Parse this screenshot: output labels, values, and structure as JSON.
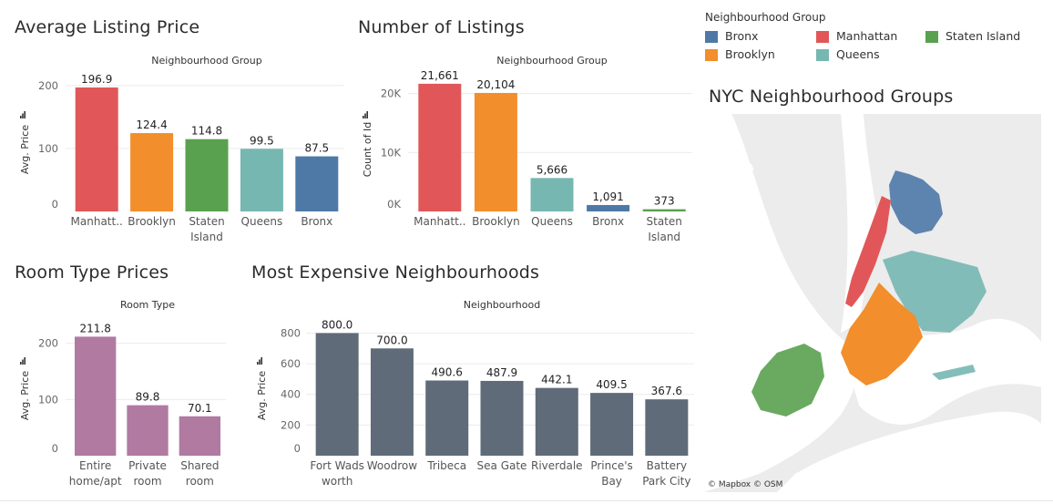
{
  "colors": {
    "manhattan": "#e15759",
    "brooklyn": "#f28e2b",
    "queens": "#76b7b2",
    "bronx": "#4e79a7",
    "staten_island": "#59a14f",
    "room_type": "#b07aa1",
    "neighbourhood": "#5f6b78"
  },
  "titles": {
    "avg_price": "Average Listing Price",
    "num_listings": "Number of Listings",
    "room_type": "Room Type Prices",
    "most_expensive": "Most Expensive Neighbourhoods",
    "map": "NYC Neighbourhood Groups"
  },
  "legend": {
    "title": "Neighbourhood Group",
    "items": [
      {
        "label": "Bronx",
        "color_key": "bronx"
      },
      {
        "label": "Manhattan",
        "color_key": "manhattan"
      },
      {
        "label": "Staten Island",
        "color_key": "staten_island"
      },
      {
        "label": "Brooklyn",
        "color_key": "brooklyn"
      },
      {
        "label": "Queens",
        "color_key": "queens"
      }
    ]
  },
  "map": {
    "credit": "© Mapbox © OSM"
  },
  "chart_data": [
    {
      "id": "avg_price",
      "type": "bar",
      "title": "Average Listing Price",
      "xlabel": "Neighbourhood Group",
      "ylabel": "Avg. Price",
      "ylim": [
        0,
        220
      ],
      "yticks": [
        0,
        100,
        200
      ],
      "ytick_labels": [
        "0",
        "100",
        "200"
      ],
      "categories": [
        "Manhatt..",
        "Brooklyn",
        "Staten Island",
        "Queens",
        "Bronx"
      ],
      "values": [
        196.9,
        124.4,
        114.8,
        99.5,
        87.5
      ],
      "value_labels": [
        "196.9",
        "124.4",
        "114.8",
        "99.5",
        "87.5"
      ],
      "color_keys": [
        "manhattan",
        "brooklyn",
        "staten_island",
        "queens",
        "bronx"
      ]
    },
    {
      "id": "num_listings",
      "type": "bar",
      "title": "Number of Listings",
      "xlabel": "Neighbourhood Group",
      "ylabel": "Count of Id",
      "ylim": [
        0,
        23500
      ],
      "yticks": [
        0,
        10000,
        20000
      ],
      "ytick_labels": [
        "0K",
        "10K",
        "20K"
      ],
      "categories": [
        "Manhatt..",
        "Brooklyn",
        "Queens",
        "Bronx",
        "Staten Island"
      ],
      "values": [
        21661,
        20104,
        5666,
        1091,
        373
      ],
      "value_labels": [
        "21,661",
        "20,104",
        "5,666",
        "1,091",
        "373"
      ],
      "color_keys": [
        "manhattan",
        "brooklyn",
        "queens",
        "bronx",
        "staten_island"
      ]
    },
    {
      "id": "room_type",
      "type": "bar",
      "title": "Room Type Prices",
      "xlabel": "Room Type",
      "ylabel": "Avg. Price",
      "ylim": [
        0,
        240
      ],
      "yticks": [
        0,
        100,
        200
      ],
      "ytick_labels": [
        "0",
        "100",
        "200"
      ],
      "categories": [
        "Entire home/apt",
        "Private room",
        "Shared room"
      ],
      "values": [
        211.8,
        89.8,
        70.1
      ],
      "value_labels": [
        "211.8",
        "89.8",
        "70.1"
      ],
      "color_keys": [
        "room_type",
        "room_type",
        "room_type"
      ]
    },
    {
      "id": "most_expensive",
      "type": "bar",
      "title": "Most Expensive Neighbourhoods",
      "xlabel": "Neighbourhood",
      "ylabel": "Avg. Price",
      "ylim": [
        0,
        880
      ],
      "yticks": [
        0,
        200,
        400,
        600,
        800
      ],
      "ytick_labels": [
        "0",
        "200",
        "400",
        "600",
        "800"
      ],
      "categories": [
        "Fort Wadsworth",
        "Woodrow",
        "Tribeca",
        "Sea Gate",
        "Riverdale",
        "Prince's Bay",
        "Battery Park City"
      ],
      "values": [
        800.0,
        700.0,
        490.6,
        487.9,
        442.1,
        409.5,
        367.6
      ],
      "value_labels": [
        "800.0",
        "700.0",
        "490.6",
        "487.9",
        "442.1",
        "409.5",
        "367.6"
      ],
      "color_keys": [
        "neighbourhood",
        "neighbourhood",
        "neighbourhood",
        "neighbourhood",
        "neighbourhood",
        "neighbourhood",
        "neighbourhood"
      ]
    }
  ]
}
